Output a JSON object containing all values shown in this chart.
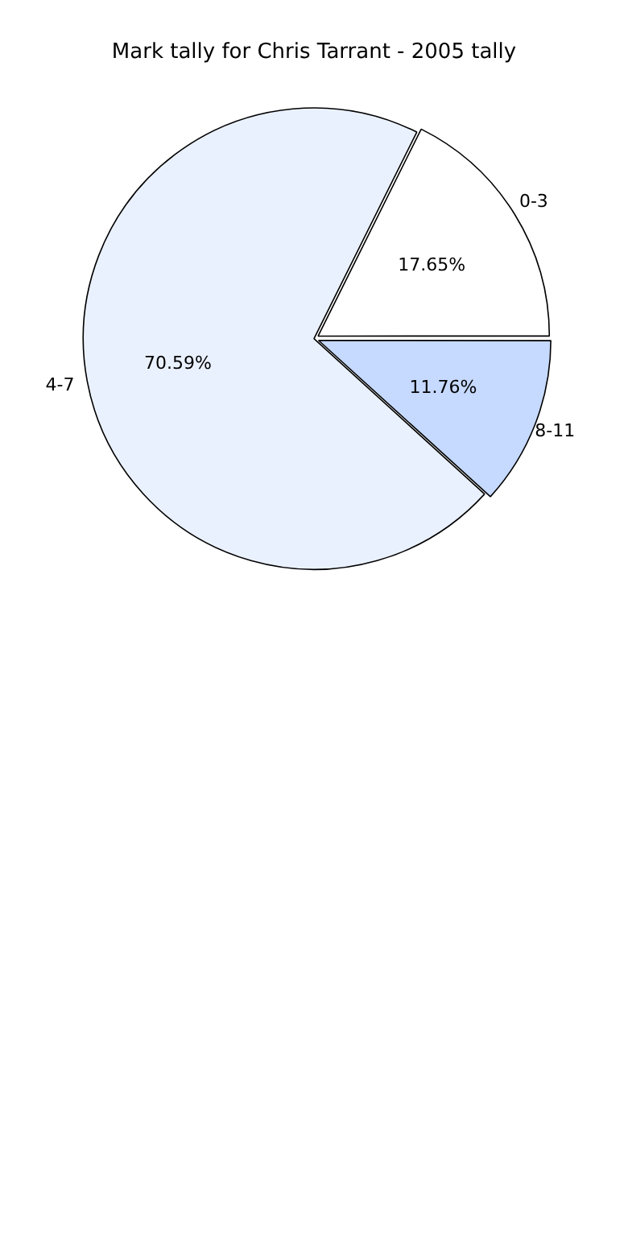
{
  "chart_data": {
    "type": "pie",
    "title": "Mark tally for Chris Tarrant - 2005 tally",
    "categories": [
      "0-3",
      "4-7",
      "8-11"
    ],
    "values": [
      17.65,
      70.59,
      11.76
    ],
    "colors": [
      "#ffffff",
      "#eaf1fe",
      "#c6d9fe"
    ],
    "value_labels": [
      "17.65%",
      "70.59%",
      "11.76%"
    ],
    "legend": false
  }
}
